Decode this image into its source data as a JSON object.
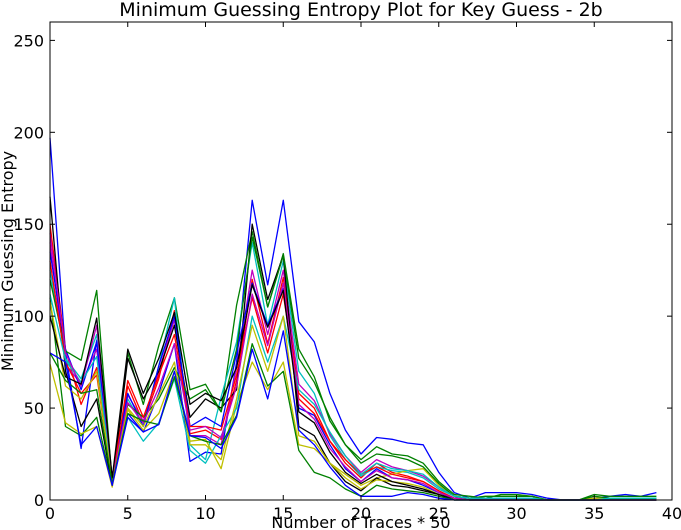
{
  "chart_data": {
    "type": "line",
    "title": "Minimum Guessing Entropy Plot for Key Guess - 2b",
    "xlabel": "Number of Traces * 50",
    "ylabel": "Minimum Guessing Entropy",
    "xlim": [
      0,
      40
    ],
    "ylim": [
      0,
      260
    ],
    "xticks": [
      0,
      5,
      10,
      15,
      20,
      25,
      30,
      35,
      40
    ],
    "yticks": [
      0,
      50,
      100,
      150,
      200,
      250
    ],
    "grid": false,
    "legend": "none",
    "x": [
      0,
      1,
      2,
      3,
      4,
      5,
      6,
      7,
      8,
      9,
      10,
      11,
      12,
      13,
      14,
      15,
      16,
      17,
      18,
      19,
      20,
      21,
      22,
      23,
      24,
      25,
      26,
      27,
      28,
      29,
      30,
      31,
      32,
      33,
      34,
      35,
      36,
      37,
      38,
      39
    ],
    "series": [
      {
        "color": "#0000ff",
        "values": [
          197,
          80,
          28,
          87,
          12,
          47,
          37,
          58,
          85,
          21,
          26,
          25,
          75,
          163,
          117,
          163,
          97,
          86,
          58,
          38,
          25,
          34,
          33,
          31,
          30,
          15,
          4,
          1,
          4,
          4,
          4,
          3,
          1,
          0,
          0,
          1,
          2,
          3,
          2,
          4
        ]
      },
      {
        "color": "#008000",
        "values": [
          110,
          40,
          35,
          45,
          8,
          80,
          52,
          84,
          110,
          60,
          63,
          48,
          106,
          146,
          105,
          134,
          82,
          67,
          43,
          30,
          22,
          29,
          25,
          24,
          20,
          10,
          3,
          2,
          1,
          3,
          3,
          2,
          0,
          0,
          0,
          3,
          2,
          2,
          2,
          2
        ]
      },
      {
        "color": "#ff0000",
        "values": [
          150,
          82,
          52,
          72,
          9,
          62,
          42,
          66,
          103,
          36,
          38,
          33,
          65,
          120,
          85,
          121,
          58,
          50,
          32,
          20,
          12,
          20,
          15,
          13,
          10,
          5,
          1,
          0,
          0,
          0,
          0,
          0,
          0,
          0,
          0,
          0,
          0,
          0,
          0,
          0
        ]
      },
      {
        "color": "#00bfbf",
        "values": [
          125,
          77,
          66,
          90,
          10,
          55,
          40,
          73,
          110,
          30,
          22,
          56,
          86,
          140,
          95,
          130,
          70,
          58,
          35,
          22,
          13,
          18,
          16,
          15,
          12,
          6,
          2,
          0,
          1,
          1,
          1,
          1,
          0,
          0,
          0,
          0,
          1,
          1,
          1,
          1
        ]
      },
      {
        "color": "#bf00bf",
        "values": [
          140,
          74,
          63,
          82,
          11,
          57,
          43,
          70,
          98,
          35,
          35,
          30,
          72,
          125,
          90,
          125,
          63,
          54,
          36,
          24,
          15,
          22,
          18,
          16,
          13,
          7,
          2,
          1,
          1,
          1,
          1,
          1,
          0,
          0,
          0,
          1,
          1,
          1,
          1,
          1
        ]
      },
      {
        "color": "#bfbf00",
        "values": [
          74,
          42,
          36,
          40,
          7,
          49,
          38,
          47,
          70,
          32,
          33,
          17,
          52,
          75,
          60,
          75,
          30,
          28,
          20,
          14,
          8,
          12,
          14,
          16,
          17,
          8,
          2,
          1,
          2,
          2,
          2,
          2,
          0,
          0,
          0,
          1,
          1,
          1,
          1,
          1
        ]
      },
      {
        "color": "#000000",
        "values": [
          165,
          70,
          40,
          55,
          8,
          77,
          55,
          70,
          95,
          45,
          55,
          50,
          60,
          150,
          109,
          133,
          40,
          35,
          20,
          10,
          5,
          12,
          8,
          7,
          5,
          3,
          1,
          0,
          0,
          0,
          0,
          0,
          0,
          0,
          0,
          0,
          0,
          0,
          0,
          0
        ]
      },
      {
        "color": "#0000ff",
        "values": [
          135,
          82,
          60,
          86,
          12,
          58,
          40,
          73,
          100,
          40,
          45,
          40,
          80,
          118,
          95,
          115,
          50,
          46,
          30,
          17,
          10,
          17,
          12,
          11,
          8,
          4,
          1,
          0,
          0,
          0,
          0,
          0,
          0,
          0,
          0,
          0,
          0,
          0,
          0,
          0
        ]
      },
      {
        "color": "#008000",
        "values": [
          120,
          81,
          76,
          114,
          10,
          52,
          45,
          55,
          72,
          55,
          60,
          48,
          82,
          143,
          105,
          133,
          77,
          64,
          45,
          30,
          20,
          25,
          24,
          22,
          18,
          9,
          2,
          1,
          2,
          2,
          2,
          2,
          0,
          0,
          0,
          2,
          1,
          1,
          1,
          1
        ]
      },
      {
        "color": "#ff0000",
        "values": [
          130,
          75,
          58,
          68,
          10,
          65,
          45,
          68,
          90,
          40,
          40,
          38,
          68,
          110,
          80,
          112,
          55,
          47,
          32,
          22,
          14,
          18,
          14,
          12,
          10,
          5,
          1,
          0,
          0,
          0,
          0,
          0,
          0,
          0,
          0,
          0,
          0,
          0,
          0,
          0
        ]
      },
      {
        "color": "#00bfbf",
        "values": [
          112,
          76,
          64,
          78,
          10,
          45,
          32,
          42,
          66,
          27,
          20,
          35,
          50,
          100,
          75,
          100,
          60,
          52,
          37,
          24,
          14,
          20,
          17,
          16,
          14,
          7,
          2,
          1,
          1,
          1,
          1,
          1,
          0,
          0,
          0,
          0,
          1,
          1,
          1,
          1
        ]
      },
      {
        "color": "#bf00bf",
        "values": [
          145,
          80,
          62,
          95,
          11,
          53,
          42,
          61,
          85,
          38,
          40,
          34,
          62,
          112,
          84,
          118,
          52,
          44,
          28,
          18,
          10,
          16,
          12,
          11,
          9,
          4,
          1,
          0,
          0,
          0,
          0,
          0,
          0,
          0,
          0,
          0,
          0,
          0,
          0,
          0
        ]
      },
      {
        "color": "#bfbf00",
        "values": [
          108,
          62,
          55,
          70,
          9,
          50,
          40,
          57,
          75,
          30,
          30,
          22,
          55,
          95,
          70,
          100,
          35,
          32,
          20,
          12,
          6,
          11,
          10,
          9,
          7,
          3,
          0,
          0,
          0,
          0,
          0,
          0,
          0,
          0,
          0,
          0,
          0,
          0,
          0,
          0
        ]
      },
      {
        "color": "#000000",
        "values": [
          100,
          67,
          63,
          99,
          12,
          82,
          58,
          77,
          102,
          52,
          58,
          54,
          72,
          117,
          94,
          114,
          48,
          42,
          26,
          15,
          9,
          14,
          10,
          8,
          6,
          3,
          0,
          0,
          0,
          0,
          0,
          0,
          0,
          0,
          0,
          0,
          0,
          0,
          0,
          0
        ]
      },
      {
        "color": "#008000",
        "values": [
          80,
          65,
          58,
          60,
          9,
          47,
          43,
          41,
          67,
          35,
          32,
          30,
          46,
          85,
          62,
          70,
          27,
          15,
          12,
          6,
          2,
          8,
          6,
          5,
          4,
          2,
          0,
          0,
          0,
          0,
          0,
          0,
          0,
          0,
          0,
          0,
          0,
          0,
          0,
          0
        ]
      },
      {
        "color": "#0000ff",
        "values": [
          80,
          75,
          30,
          40,
          8,
          45,
          37,
          41,
          70,
          35,
          34,
          28,
          45,
          82,
          55,
          92,
          38,
          30,
          18,
          8,
          2,
          2,
          2,
          4,
          3,
          1,
          0,
          0,
          0,
          0,
          0,
          0,
          0,
          0,
          0,
          0,
          0,
          0,
          0,
          0
        ]
      }
    ]
  }
}
